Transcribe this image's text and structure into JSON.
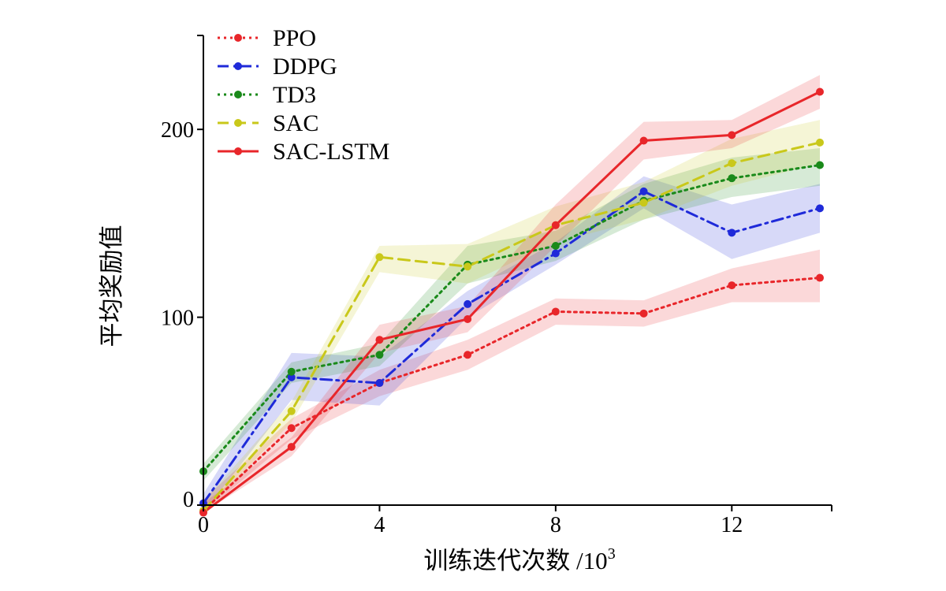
{
  "chart_data": {
    "type": "line",
    "title": "",
    "xlabel": "训练迭代次数 /10",
    "xlabel_sup": "3",
    "ylabel": "平均奖励值",
    "xlim": [
      0,
      14
    ],
    "ylim": [
      0,
      250
    ],
    "x": [
      0,
      2,
      4,
      6,
      8,
      10,
      12,
      14
    ],
    "x_ticks": [
      0,
      4,
      8,
      12
    ],
    "x_tick_labels": [
      "0",
      "4",
      "8",
      "12"
    ],
    "y_ticks": [
      0,
      100,
      200
    ],
    "y_tick_labels": [
      "0",
      "100",
      "200"
    ],
    "grid": false,
    "legend_position": "top-left",
    "series": [
      {
        "name": "PPO",
        "color": "#e8262a",
        "style": "dotted",
        "values": [
          -3,
          41,
          65,
          80,
          103,
          102,
          117,
          121
        ],
        "upper": [
          3,
          46,
          72,
          88,
          110,
          109,
          126,
          136
        ],
        "lower": [
          -9,
          35,
          58,
          72,
          96,
          95,
          108,
          108
        ]
      },
      {
        "name": "DDPG",
        "color": "#1f2ad9",
        "style": "dashdot",
        "values": [
          1,
          68,
          65,
          107,
          134,
          167,
          145,
          158
        ],
        "upper": [
          6,
          81,
          79,
          114,
          140,
          175,
          160,
          171
        ],
        "lower": [
          -4,
          56,
          53,
          100,
          128,
          158,
          131,
          145
        ]
      },
      {
        "name": "TD3",
        "color": "#1a8a1a",
        "style": "dotted",
        "values": [
          18,
          71,
          80,
          128,
          138,
          162,
          174,
          181
        ],
        "upper": [
          22,
          76,
          86,
          138,
          146,
          171,
          185,
          190
        ],
        "lower": [
          13,
          65,
          74,
          118,
          130,
          152,
          164,
          170
        ]
      },
      {
        "name": "SAC",
        "color": "#c9c81a",
        "style": "dashed",
        "values": [
          -3,
          50,
          132,
          127,
          149,
          161,
          182,
          193
        ],
        "upper": [
          2,
          55,
          138,
          139,
          159,
          172,
          195,
          205
        ],
        "lower": [
          -8,
          44,
          124,
          118,
          140,
          152,
          170,
          182
        ]
      },
      {
        "name": "SAC-LSTM",
        "color": "#e8262a",
        "style": "solid",
        "values": [
          -4,
          31,
          88,
          99,
          149,
          194,
          197,
          220
        ],
        "upper": [
          1,
          36,
          96,
          106,
          160,
          204,
          205,
          229
        ],
        "lower": [
          -9,
          26,
          81,
          92,
          138,
          184,
          190,
          211
        ]
      }
    ]
  }
}
